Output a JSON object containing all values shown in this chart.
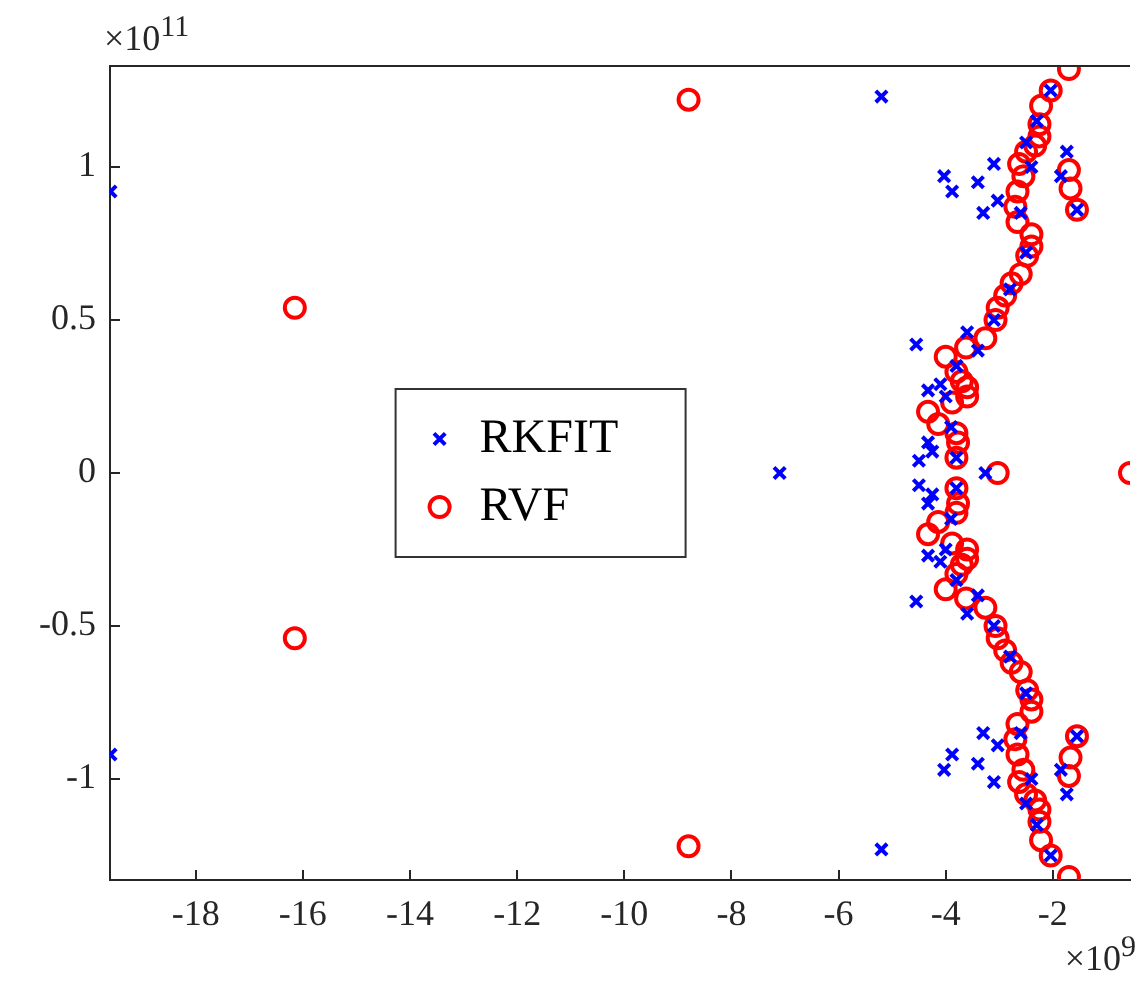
{
  "chart_data": {
    "type": "scatter",
    "xlim": [
      -19.6,
      -0.56
    ],
    "ylim": [
      -1.33,
      1.33
    ],
    "xticks": [
      -18,
      -16,
      -14,
      -12,
      -10,
      -8,
      -6,
      -4,
      -2
    ],
    "yticks": [
      -1,
      -0.5,
      0,
      0.5,
      1
    ],
    "grid": false,
    "legend": "left",
    "annotations": [
      "×10$^{11}$",
      "×10$^{9}$"
    ],
    "series": [
      {
        "name": "RKFIT",
        "color": "#0000ff",
        "marker": "cross",
        "x": [
          -19.59,
          -19.59,
          -5.2,
          -5.2,
          -7.1,
          -1.74,
          -1.74,
          -1.85,
          -1.85,
          -4.03,
          -4.03,
          -3.88,
          -3.88,
          -3.4,
          -3.4,
          -3.1,
          -3.1,
          -3.3,
          -3.3,
          -3.03,
          -3.03,
          -2.5,
          -2.5,
          -2.04,
          -2.04,
          -1.55,
          -1.55,
          -4.55,
          -4.55,
          -3.6,
          -3.6,
          -4.33,
          -4.33,
          -4.1,
          -4.1,
          -4.33,
          -4.33,
          -4.5,
          -4.5,
          -4.25,
          -4.25,
          -3.26,
          -2.3,
          -2.3,
          -2.4,
          -2.4,
          -2.6,
          -2.6,
          -2.5,
          -2.5,
          -2.8,
          -2.8,
          -3.1,
          -3.1,
          -3.4,
          -3.4,
          -3.8,
          -3.8,
          -4.0,
          -4.0,
          -3.9,
          -3.9,
          -3.8,
          -3.8
        ],
        "values": [
          0.92,
          -0.92,
          1.23,
          -1.23,
          0,
          1.05,
          -1.05,
          0.97,
          -0.97,
          0.97,
          -0.97,
          0.92,
          -0.92,
          0.95,
          -0.95,
          1.01,
          -1.01,
          0.85,
          -0.85,
          0.89,
          -0.89,
          1.08,
          -1.08,
          1.25,
          -1.25,
          0.86,
          -0.86,
          0.42,
          -0.42,
          0.46,
          -0.46,
          0.27,
          -0.27,
          0.29,
          -0.29,
          0.1,
          -0.1,
          0.04,
          -0.04,
          0.07,
          -0.07,
          0,
          1.15,
          -1.15,
          1.0,
          -1.0,
          0.85,
          -0.85,
          0.72,
          -0.72,
          0.6,
          -0.6,
          0.5,
          -0.5,
          0.4,
          -0.4,
          0.35,
          -0.35,
          0.25,
          -0.25,
          0.15,
          -0.15,
          0.05,
          -0.05
        ]
      },
      {
        "name": "RVF",
        "color": "#ff0000",
        "marker": "circle",
        "x": [
          -1.7,
          -1.7,
          -2.04,
          -2.04,
          -2.22,
          -2.22,
          -2.25,
          -2.25,
          -2.25,
          -2.25,
          -2.33,
          -2.33,
          -2.5,
          -2.5,
          -2.63,
          -2.63,
          -2.55,
          -2.55,
          -2.66,
          -2.66,
          -2.7,
          -2.7,
          -2.66,
          -2.66,
          -2.4,
          -2.4,
          -2.4,
          -2.4,
          -2.48,
          -2.48,
          -2.6,
          -2.6,
          -2.77,
          -2.77,
          -2.89,
          -2.89,
          -3.03,
          -3.03,
          -3.07,
          -3.07,
          -3.26,
          -3.26,
          -3.62,
          -3.62,
          -4.0,
          -4.0,
          -3.8,
          -3.8,
          -3.7,
          -3.7,
          -3.6,
          -3.6,
          -3.6,
          -3.6,
          -3.88,
          -3.88,
          -4.33,
          -4.33,
          -4.14,
          -4.14,
          -3.8,
          -3.8,
          -3.77,
          -3.77,
          -3.8,
          -3.8,
          -1.7,
          -1.7,
          -1.67,
          -1.67,
          -1.55,
          -1.55,
          -8.8,
          -8.8,
          -16.15,
          -16.15,
          -3.03,
          -0.56
        ],
        "values": [
          1.32,
          -1.32,
          1.25,
          -1.25,
          1.2,
          -1.2,
          1.14,
          -1.14,
          1.1,
          -1.1,
          1.07,
          -1.07,
          1.05,
          -1.05,
          1.01,
          -1.01,
          0.97,
          -0.97,
          0.92,
          -0.92,
          0.87,
          -0.87,
          0.82,
          -0.82,
          0.78,
          -0.78,
          0.74,
          -0.74,
          0.71,
          -0.71,
          0.65,
          -0.65,
          0.62,
          -0.62,
          0.58,
          -0.58,
          0.54,
          -0.54,
          0.5,
          -0.5,
          0.44,
          -0.44,
          0.41,
          -0.41,
          0.38,
          -0.38,
          0.33,
          -0.33,
          0.3,
          -0.3,
          0.28,
          -0.28,
          0.25,
          -0.25,
          0.23,
          -0.23,
          0.2,
          -0.2,
          0.16,
          -0.16,
          0.13,
          -0.13,
          0.1,
          -0.1,
          0.05,
          -0.05,
          0.99,
          -0.99,
          0.93,
          -0.93,
          0.86,
          -0.86,
          1.22,
          -1.22,
          0.54,
          -0.54,
          0,
          0
        ]
      }
    ]
  }
}
